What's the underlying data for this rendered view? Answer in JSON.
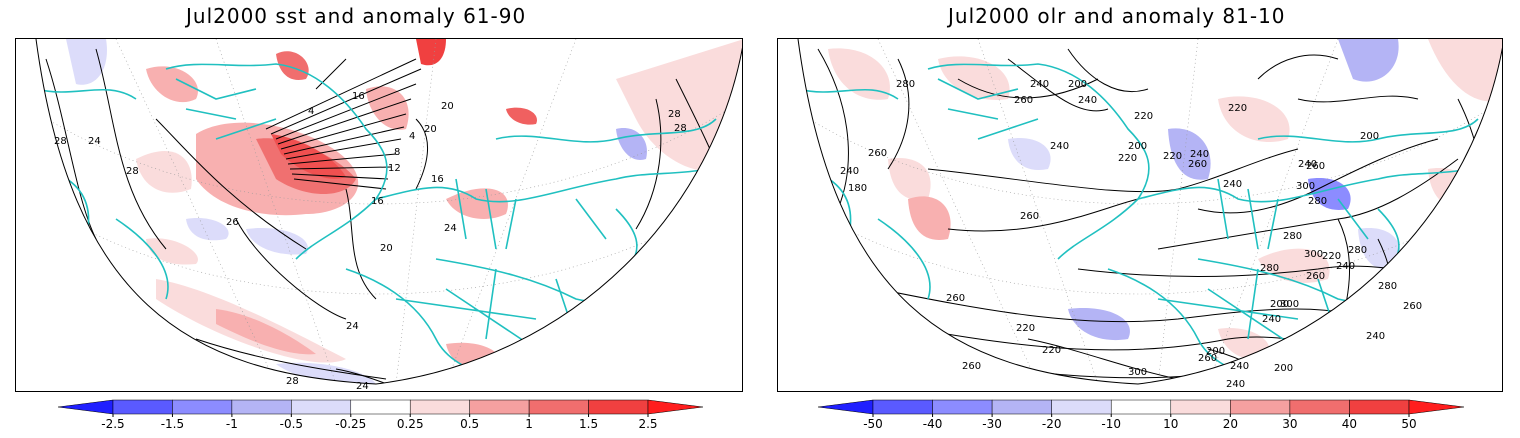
{
  "panels": [
    {
      "title": "Jul2000 sst and anomaly 61-90",
      "contour_labels": [
        "28",
        "24",
        "28",
        "26",
        "20",
        "24",
        "28",
        "24",
        "16",
        "12",
        "8",
        "4",
        "16",
        "4",
        "20",
        "16",
        "20",
        "28",
        "28",
        "24"
      ],
      "colorbar": {
        "labels": [
          "-2.5",
          "-1.5",
          "-1",
          "-0.5",
          "-0.25",
          "0.25",
          "0.5",
          "1",
          "1.5",
          "2.5"
        ],
        "colors": [
          "#2020ff",
          "#5a5aff",
          "#8c8cff",
          "#b4b4f5",
          "#dcdcfa",
          "#ffffff",
          "#fadcdc",
          "#f5a0a0",
          "#f06e6e",
          "#f04040",
          "#ff1e1e"
        ]
      }
    },
    {
      "title": "Jul2000 olr and anomaly 81-10",
      "contour_labels": [
        "280",
        "240",
        "200",
        "240",
        "260",
        "220",
        "240",
        "200",
        "220",
        "240",
        "260",
        "280",
        "200",
        "260",
        "240",
        "220",
        "180",
        "240",
        "260",
        "240",
        "220",
        "260",
        "280",
        "300",
        "300",
        "280",
        "240",
        "220",
        "260",
        "200",
        "280",
        "240",
        "260",
        "300",
        "280",
        "260",
        "240",
        "220",
        "200",
        "260",
        "240",
        "200",
        "220",
        "240",
        "260",
        "300"
      ],
      "colorbar": {
        "labels": [
          "-50",
          "-40",
          "-30",
          "-20",
          "-10",
          "10",
          "20",
          "30",
          "40",
          "50"
        ],
        "colors": [
          "#2020ff",
          "#5a5aff",
          "#8c8cff",
          "#b4b4f5",
          "#dcdcfa",
          "#ffffff",
          "#fadcdc",
          "#f5a0a0",
          "#f06e6e",
          "#f04040",
          "#ff1e1e"
        ]
      }
    }
  ],
  "style": {
    "coast_color": "#20c0c0",
    "contour_color": "#000000"
  }
}
